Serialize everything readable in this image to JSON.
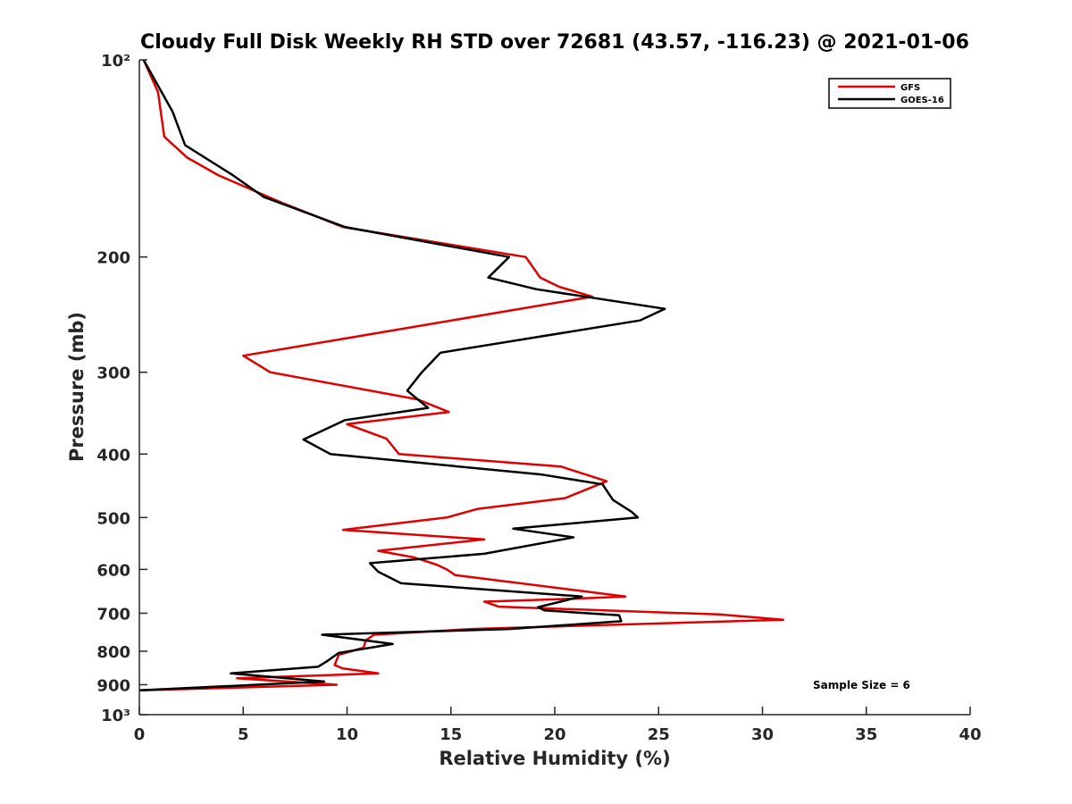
{
  "chart_data": {
    "type": "line",
    "title": "Cloudy Full Disk Weekly RH STD over 72681 (43.57, -116.23) @ 2021-01-06",
    "xlabel": "Relative Humidity (%)",
    "ylabel": "Pressure (mb)",
    "xlim": [
      0,
      40
    ],
    "ylim": [
      100,
      1000
    ],
    "y_scale": "log",
    "y_reversed": true,
    "xticks": [
      0,
      5,
      10,
      15,
      20,
      25,
      30,
      35,
      40
    ],
    "xtick_labels": [
      "0",
      "5",
      "10",
      "15",
      "20",
      "25",
      "30",
      "35",
      "40"
    ],
    "yticks": [
      100,
      200,
      300,
      400,
      500,
      600,
      700,
      800,
      900,
      1000
    ],
    "ytick_labels": [
      "10²",
      "200",
      "300",
      "400",
      "500",
      "600",
      "700",
      "800",
      "900",
      "10³"
    ],
    "grid": false,
    "legend_position": "top-right",
    "annotation": "Sample Size = 6",
    "series": [
      {
        "name": "GFS",
        "color": "#e00000",
        "x": [
          0.2,
          0.9,
          1.2,
          2.3,
          3.8,
          6.8,
          9.8,
          18.6,
          19.3,
          20.2,
          21.8,
          5.0,
          6.3,
          13.4,
          14.9,
          10.0,
          11.9,
          12.5,
          20.3,
          22.5,
          20.5,
          16.3,
          14.8,
          9.8,
          16.6,
          11.5,
          13.2,
          14.3,
          14.8,
          15.2,
          23.4,
          21.0,
          16.6,
          17.3,
          27.9,
          31.0,
          16.0,
          11.3,
          10.9,
          10.8,
          9.6,
          9.4,
          9.8,
          11.5,
          4.7,
          9.5,
          0.0
        ],
        "y": [
          100,
          112,
          131,
          141,
          150,
          165,
          180,
          200,
          215,
          222,
          230,
          283,
          300,
          330,
          345,
          360,
          379,
          400,
          418,
          440,
          467,
          485,
          500,
          522,
          540,
          562,
          575,
          590,
          600,
          612,
          660,
          665,
          672,
          684,
          703,
          716,
          740,
          755,
          770,
          790,
          810,
          840,
          850,
          865,
          880,
          900,
          918
        ]
      },
      {
        "name": "GOES-16",
        "color": "#000000",
        "x": [
          0.2,
          1.6,
          2.2,
          4.5,
          6.0,
          9.9,
          17.8,
          16.8,
          19.1,
          25.3,
          24.1,
          14.5,
          13.6,
          12.9,
          13.9,
          9.9,
          7.9,
          9.2,
          19.4,
          22.3,
          22.8,
          23.7,
          24.0,
          18.0,
          20.9,
          16.6,
          11.1,
          11.5,
          12.6,
          21.3,
          19.2,
          19.5,
          23.1,
          23.2,
          17.8,
          8.8,
          12.2,
          9.6,
          9.0,
          8.6,
          4.4,
          8.9,
          0.0
        ],
        "y": [
          100,
          120,
          135,
          150,
          162,
          180,
          200,
          215,
          224,
          240,
          250,
          280,
          300,
          320,
          340,
          355,
          380,
          400,
          430,
          445,
          470,
          490,
          500,
          520,
          536,
          568,
          587,
          605,
          630,
          660,
          685,
          693,
          705,
          720,
          740,
          755,
          780,
          805,
          830,
          845,
          865,
          890,
          918
        ]
      }
    ]
  }
}
